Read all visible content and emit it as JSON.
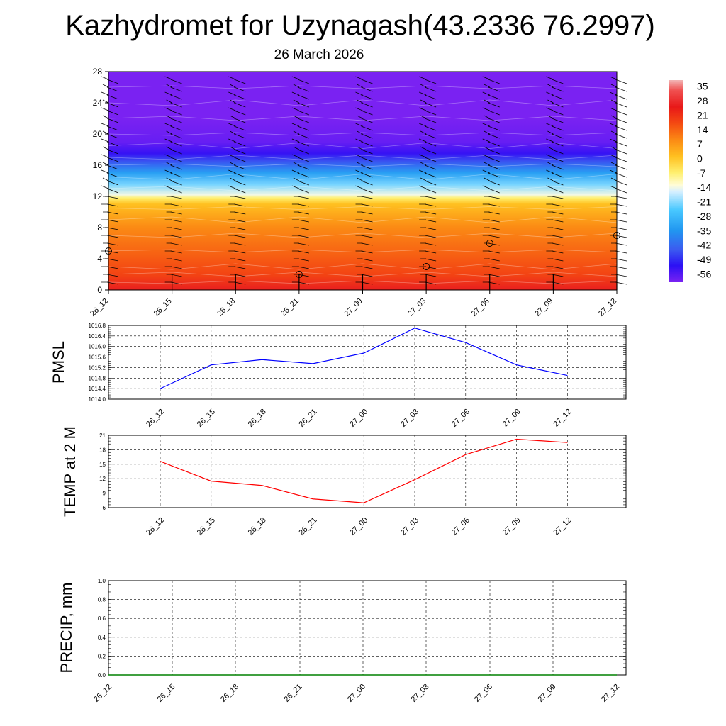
{
  "title": "Kazhydromet for Uzynagash(43.2336 76.2997)",
  "subtitle": "26 March 2026",
  "chart_data": [
    {
      "type": "heatmap",
      "name": "vertical-section",
      "x_tick_labels": [
        "26_12",
        "26_15",
        "26_18",
        "26_21",
        "27_00",
        "27_03",
        "27_06",
        "27_09",
        "27_12"
      ],
      "y_ticks": [
        0,
        4,
        8,
        12,
        16,
        20,
        24,
        28
      ],
      "ylim": [
        0,
        28
      ],
      "colorbar": {
        "labels": [
          "35",
          "28",
          "21",
          "14",
          "7",
          "0",
          "-7",
          "-14",
          "-21",
          "-28",
          "-35",
          "-42",
          "-49",
          "-56"
        ],
        "stops": [
          {
            "value": 38,
            "color": "#f2b4b4"
          },
          {
            "value": 33,
            "color": "#f05050"
          },
          {
            "value": 25,
            "color": "#e81818"
          },
          {
            "value": 17,
            "color": "#f44a12"
          },
          {
            "value": 9,
            "color": "#fb8a14"
          },
          {
            "value": 1,
            "color": "#ffc020"
          },
          {
            "value": -7,
            "color": "#fff070"
          },
          {
            "value": -13,
            "color": "#fffcd8"
          },
          {
            "value": -16,
            "color": "#d8f0ff"
          },
          {
            "value": -25,
            "color": "#48c8ff"
          },
          {
            "value": -35,
            "color": "#2196f0"
          },
          {
            "value": -44,
            "color": "#3b5cf0"
          },
          {
            "value": -52,
            "color": "#2c10f4"
          },
          {
            "value": -60,
            "color": "#7a22f2"
          }
        ]
      },
      "temperature_profile": [
        {
          "level": 0,
          "value": 26
        },
        {
          "level": 2,
          "value": 18
        },
        {
          "level": 4,
          "value": 15
        },
        {
          "level": 8,
          "value": 9
        },
        {
          "level": 11,
          "value": 1
        },
        {
          "level": 11.8,
          "value": -7
        },
        {
          "level": 12.2,
          "value": -14
        },
        {
          "level": 13.5,
          "value": -22
        },
        {
          "level": 15,
          "value": -33
        },
        {
          "level": 16.5,
          "value": -45
        },
        {
          "level": 17.5,
          "value": -53
        },
        {
          "level": 19,
          "value": -58
        },
        {
          "level": 22,
          "value": -62
        },
        {
          "level": 28,
          "value": -62
        }
      ],
      "circle_markers": [
        {
          "time_index": 0,
          "level": 5
        },
        {
          "time_index": 3,
          "level": 2
        },
        {
          "time_index": 5,
          "level": 3
        },
        {
          "time_index": 6,
          "level": 6
        },
        {
          "time_index": 8,
          "level": 7
        }
      ]
    },
    {
      "type": "line",
      "name": "pmsl",
      "ylabel": "PMSL",
      "categories": [
        "26_12",
        "26_15",
        "26_18",
        "26_21",
        "27_00",
        "27_03",
        "27_06",
        "27_09",
        "27_12"
      ],
      "values": [
        1014.4,
        1015.3,
        1015.5,
        1015.35,
        1015.75,
        1016.7,
        1016.15,
        1015.3,
        1014.9
      ],
      "y_ticks": [
        "1014.0",
        "1014.4",
        "1014.8",
        "1015.2",
        "1015.6",
        "1016.0",
        "1016.4",
        "1016.8"
      ],
      "ylim": [
        1014.0,
        1016.8
      ],
      "color": "#0000ff"
    },
    {
      "type": "line",
      "name": "temp2m",
      "ylabel": "TEMP at 2 M",
      "categories": [
        "26_12",
        "26_15",
        "26_18",
        "26_21",
        "27_00",
        "27_03",
        "27_06",
        "27_09",
        "27_12"
      ],
      "values": [
        15.6,
        11.5,
        10.6,
        7.8,
        7.0,
        11.8,
        17.0,
        20.2,
        19.5
      ],
      "y_ticks": [
        "6",
        "9",
        "12",
        "15",
        "18",
        "21"
      ],
      "ylim": [
        6,
        21
      ],
      "color": "#ff0000"
    },
    {
      "type": "line",
      "name": "precip",
      "ylabel": "PRECIP, mm",
      "categories": [
        "26_12",
        "26_15",
        "26_18",
        "26_21",
        "27_00",
        "27_03",
        "27_06",
        "27_09",
        "27_12"
      ],
      "values": [
        0,
        0,
        0,
        0,
        0,
        0,
        0,
        0,
        0
      ],
      "y_ticks": [
        "0.0",
        "0.2",
        "0.4",
        "0.6",
        "0.8",
        "1.0"
      ],
      "ylim": [
        0,
        1.0
      ],
      "color": "#008000"
    }
  ]
}
